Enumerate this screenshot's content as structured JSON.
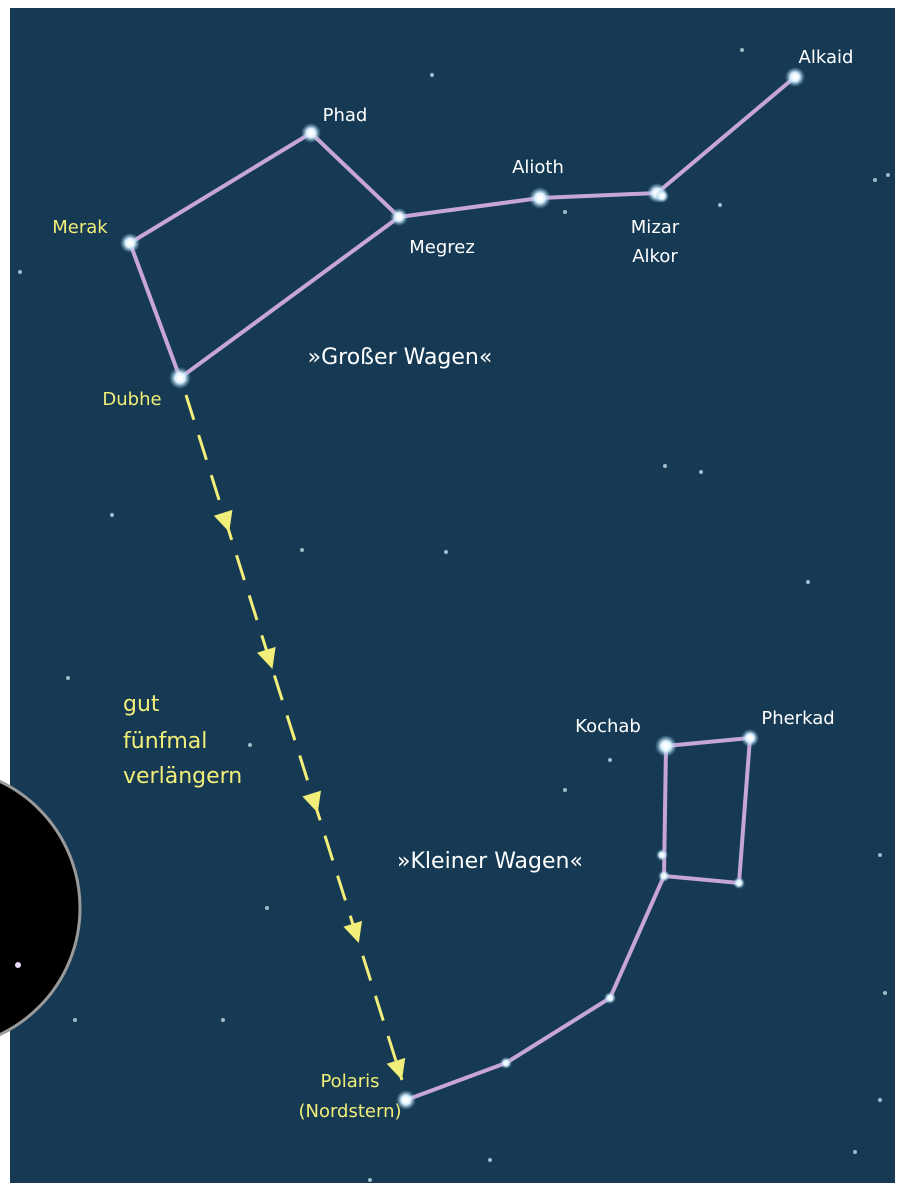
{
  "stars": [
    {
      "label": "Alkaid"
    },
    {
      "label": "Phad"
    },
    {
      "label": "Merak"
    },
    {
      "label": "Megrez"
    },
    {
      "label": "Alioth"
    },
    {
      "label": "Mizar"
    },
    {
      "label": "Alkor"
    },
    {
      "label": "Dubhe"
    },
    {
      "label": "Kochab"
    },
    {
      "label": "Pherkad"
    },
    {
      "label": "Polaris",
      "note": "(Nordstern)"
    }
  ],
  "constellations": [
    "»Großer Wagen«",
    "»Kleiner Wagen«"
  ],
  "annotation": [
    "gut",
    "fünfmal",
    "verlängern"
  ]
}
